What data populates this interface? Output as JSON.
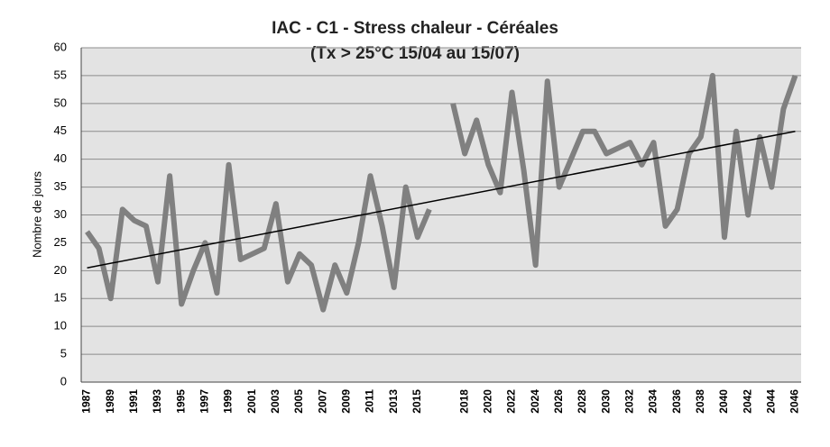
{
  "chart_data": {
    "type": "line",
    "title": "IAC - C1 - Stress chaleur - Céréales",
    "subtitle": "(Tx > 25°C 15/04 au 15/07)",
    "y_label": "Nombre de jours",
    "categories": [
      "1987",
      null,
      "1989",
      null,
      "1991",
      null,
      "1993",
      null,
      "1995",
      null,
      "1997",
      null,
      "1999",
      null,
      "2001",
      null,
      "2003",
      null,
      "2005",
      null,
      "2007",
      null,
      "2009",
      null,
      "2011",
      null,
      "2013",
      null,
      "2015",
      null,
      null,
      null,
      "2018",
      null,
      "2020",
      null,
      "2022",
      null,
      "2024",
      null,
      "2026",
      null,
      "2028",
      null,
      "2030",
      null,
      "2032",
      null,
      "2034",
      null,
      "2036",
      null,
      "2038",
      null,
      "2040",
      null,
      "2042",
      null,
      "2044",
      null,
      "2046"
    ],
    "series": [
      {
        "color": "#808080",
        "values": [
          27,
          24,
          15,
          31,
          29,
          28,
          18,
          37,
          14,
          20,
          25,
          16,
          39,
          22,
          23,
          24,
          32,
          18,
          23,
          21,
          13,
          21,
          16,
          25,
          37,
          28,
          17,
          35,
          26,
          31,
          null,
          50,
          41,
          47,
          39,
          34,
          52,
          38,
          21,
          54,
          35,
          40,
          45,
          45,
          41,
          42,
          43,
          39,
          43,
          28,
          31,
          41,
          44,
          55,
          26,
          45,
          30,
          44,
          35,
          49,
          55
        ]
      }
    ],
    "trendline": {
      "color": "#000000",
      "values": [
        20.5,
        45
      ]
    },
    "ylim": [
      0,
      60
    ],
    "yticks": [
      0,
      5,
      10,
      15,
      20,
      25,
      30,
      35,
      40,
      45,
      50,
      55,
      60
    ],
    "grid": true
  }
}
